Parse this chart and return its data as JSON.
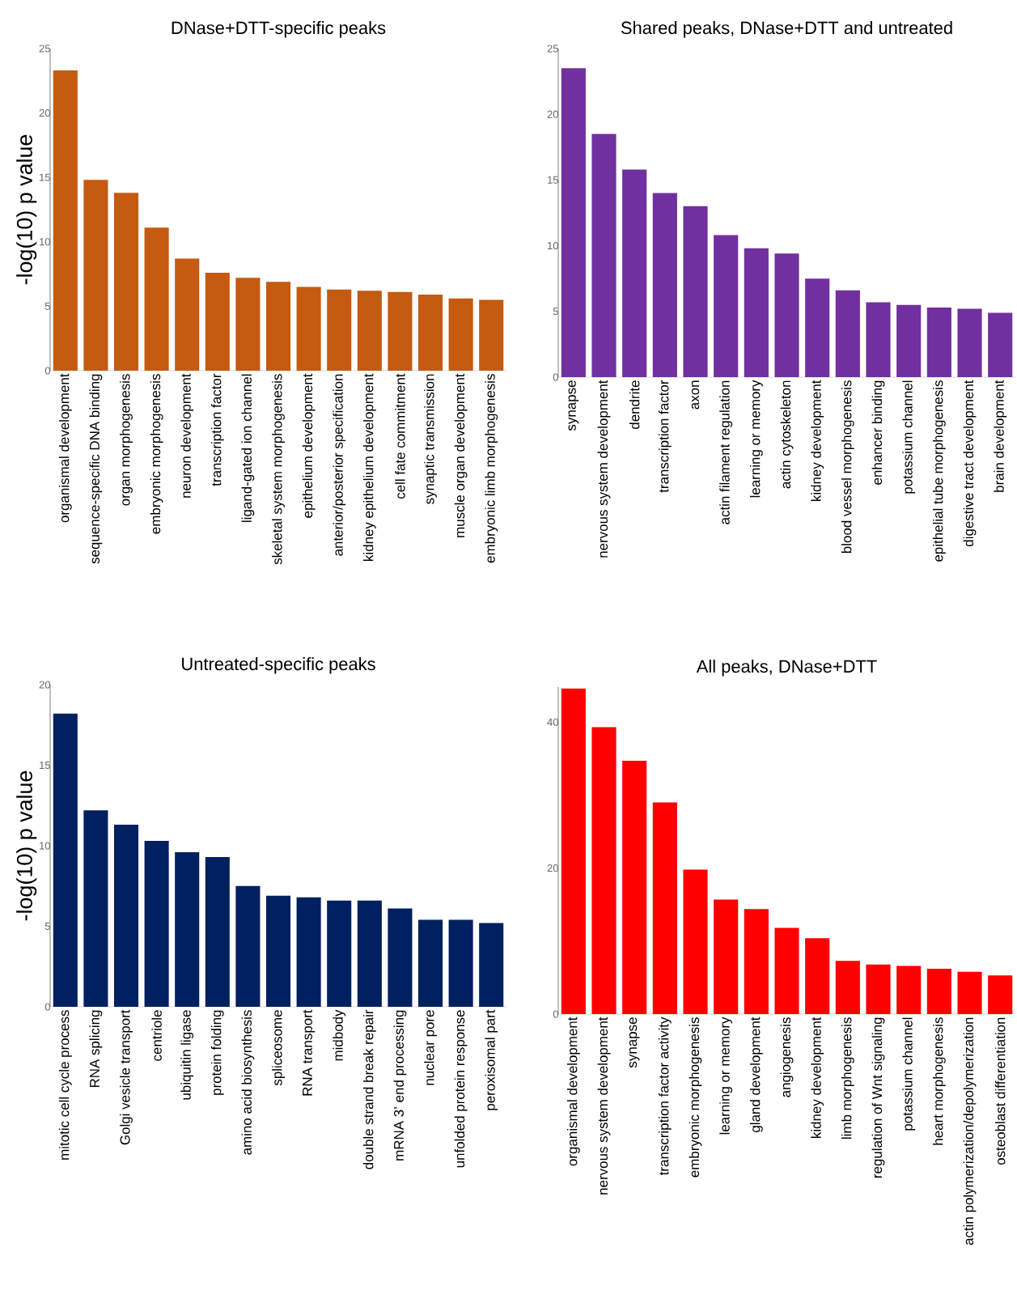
{
  "chart_data": [
    {
      "type": "bar",
      "title": "DNase+DTT-specific peaks",
      "ylabel": "-log(10) p value",
      "color": "#c55a11",
      "ylim": [
        0,
        25
      ],
      "yticks": [
        0,
        5,
        10,
        15,
        20,
        25
      ],
      "categories": [
        "organismal development",
        "sequence-specific DNA binding",
        "organ morphogenesis",
        "embryonic morphogenesis",
        "neuron development",
        "transcription factor",
        "ligand-gated ion channel",
        "skeletal system morphogenesis",
        "epithelium development",
        "anterior/posterior specification",
        "kidney epithelium development",
        "cell fate commitment",
        "synaptic transmission",
        "muscle organ development",
        "embryonic limb morphogenesis"
      ],
      "values": [
        23.3,
        14.8,
        13.8,
        11.1,
        8.7,
        7.6,
        7.2,
        6.9,
        6.5,
        6.3,
        6.2,
        6.1,
        5.9,
        5.6,
        5.5
      ]
    },
    {
      "type": "bar",
      "title": "Shared peaks, DNase+DTT and untreated",
      "color": "#7030a0",
      "ylim": [
        0,
        25
      ],
      "yticks": [
        0,
        5,
        10,
        15,
        20,
        25
      ],
      "categories": [
        "synapse",
        "nervous system development",
        "dendrite",
        "transcription factor",
        "axon",
        "actin filament regulation",
        "learning or memory",
        "actin cytoskeleton",
        "kidney development",
        "blood vessel morphogenesis",
        "enhancer binding",
        "potassium channel",
        "epithelial tube morphogenesis",
        "digestive tract development",
        "brain development"
      ],
      "values": [
        23.5,
        18.5,
        15.8,
        14.0,
        13.0,
        10.8,
        9.8,
        9.4,
        7.5,
        6.6,
        5.7,
        5.5,
        5.3,
        5.2,
        4.9
      ]
    },
    {
      "type": "bar",
      "title": "Untreated-specific peaks",
      "ylabel": "-log(10) p value",
      "color": "#002060",
      "ylim": [
        0,
        20
      ],
      "yticks": [
        0,
        5,
        10,
        15,
        20
      ],
      "categories": [
        "mitotic cell cycle process",
        "RNA splicing",
        "Golgi vesicle transport",
        "centriole",
        "ubiquitin ligase",
        "protein folding",
        "amino acid biosynthesis",
        "spliceosome",
        "RNA transport",
        "midbody",
        "double strand break repair",
        "mRNA 3’ end processing",
        "nuclear pore",
        "unfolded protein response",
        "peroxisomal part"
      ],
      "values": [
        18.2,
        12.2,
        11.3,
        10.3,
        9.6,
        9.3,
        7.5,
        6.9,
        6.8,
        6.6,
        6.6,
        6.1,
        5.4,
        5.4,
        5.2
      ]
    },
    {
      "type": "bar",
      "title": "All peaks, DNase+DTT",
      "color": "#ff0000",
      "ylim": [
        0,
        44.8
      ],
      "yticks": [
        0,
        20,
        40
      ],
      "categories": [
        "organismal development",
        "nervous system development",
        "synapse",
        "transcription factor activity",
        "embryonic morphogenesis",
        "learning or memory",
        "gland development",
        "angiogenesis",
        "kidney development",
        "limb morphogenesis",
        "regulation of Wnt signaling",
        "potassium channel",
        "heart morphogenesis",
        "actin polymerization/depolymerization",
        "osteoblast differentiation"
      ],
      "values": [
        44.6,
        39.3,
        34.7,
        29.0,
        19.8,
        15.7,
        14.4,
        11.8,
        10.4,
        7.3,
        6.8,
        6.6,
        6.2,
        5.8,
        5.3
      ]
    }
  ]
}
